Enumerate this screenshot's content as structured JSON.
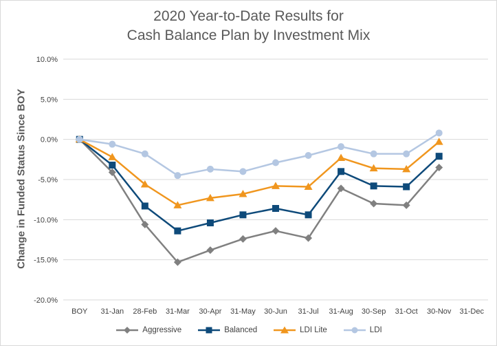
{
  "chart_data": {
    "type": "line",
    "title_line1": "2020 Year-to-Date Results for",
    "title_line2": "Cash Balance Plan by Investment Mix",
    "xlabel": "",
    "ylabel": "Change in Funded Status Since BOY",
    "categories": [
      "BOY",
      "31-Jan",
      "28-Feb",
      "31-Mar",
      "30-Apr",
      "31-May",
      "30-Jun",
      "31-Jul",
      "31-Aug",
      "30-Sep",
      "31-Oct",
      "30-Nov",
      "31-Dec"
    ],
    "ylim": [
      -20,
      10
    ],
    "yticks": [
      10,
      5,
      0,
      -5,
      -10,
      -15,
      -20
    ],
    "ytick_labels": [
      "10.0%",
      "5.0%",
      "0.0%",
      "-5.0%",
      "-10.0%",
      "-15.0%",
      "-20.0%"
    ],
    "grid": true,
    "legend_position": "bottom",
    "series": [
      {
        "name": "Aggressive",
        "color": "#808080",
        "marker": "diamond",
        "values": [
          0,
          -4.1,
          -10.6,
          -15.3,
          -13.8,
          -12.4,
          -11.4,
          -12.3,
          -6.1,
          -8.0,
          -8.2,
          -3.5,
          null
        ]
      },
      {
        "name": "Balanced",
        "color": "#0e4a7a",
        "marker": "square",
        "values": [
          0,
          -3.2,
          -8.3,
          -11.4,
          -10.4,
          -9.4,
          -8.6,
          -9.4,
          -4.0,
          -5.8,
          -5.9,
          -2.1,
          null
        ]
      },
      {
        "name": "LDI Lite",
        "color": "#f0961e",
        "marker": "triangle",
        "values": [
          0,
          -2.2,
          -5.6,
          -8.2,
          -7.3,
          -6.8,
          -5.8,
          -5.9,
          -2.3,
          -3.6,
          -3.7,
          -0.3,
          null
        ]
      },
      {
        "name": "LDI",
        "color": "#b4c7e2",
        "marker": "circle",
        "values": [
          0,
          -0.6,
          -1.8,
          -4.5,
          -3.7,
          -4.0,
          -2.9,
          -2.0,
          -0.9,
          -1.8,
          -1.8,
          0.8,
          null
        ]
      }
    ]
  }
}
